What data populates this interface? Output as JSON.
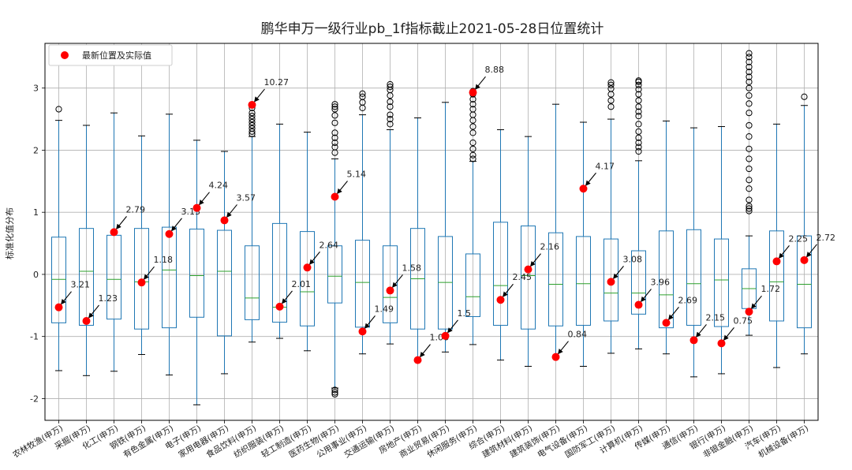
{
  "chart_data": {
    "type": "box",
    "title": "鹏华申万一级行业pb_1f指标截止2021-05-28日位置统计",
    "ylabel": "标准化值分布",
    "xlabel": "",
    "ylim": [
      -2.35,
      3.72
    ],
    "yticks": [
      -2,
      -1,
      0,
      1,
      2,
      3
    ],
    "grid": true,
    "legend": {
      "label": "最新位置及实际值",
      "position": "top-left"
    },
    "colors": {
      "box": "#1f77b4",
      "median": "#2ca02c",
      "point": "#ff0000",
      "outlier": "#000000",
      "grid": "#b0b0b0"
    },
    "categories": [
      "农林牧渔(申万)",
      "采掘(申万)",
      "化工(申万)",
      "钢铁(申万)",
      "有色金属(申万)",
      "电子(申万)",
      "家用电器(申万)",
      "食品饮料(申万)",
      "纺织服装(申万)",
      "轻工制造(申万)",
      "医药生物(申万)",
      "公用事业(申万)",
      "交通运输(申万)",
      "房地产(申万)",
      "商业贸易(申万)",
      "休闲服务(申万)",
      "综合(申万)",
      "建筑材料(申万)",
      "建筑装饰(申万)",
      "电气设备(申万)",
      "国防军工(申万)",
      "计算机(申万)",
      "传媒(申万)",
      "通信(申万)",
      "银行(申万)",
      "非银金融(申万)",
      "汽车(申万)",
      "机械设备(申万)"
    ],
    "boxes": [
      {
        "whislo": -1.55,
        "q1": -0.78,
        "med": -0.08,
        "q3": 0.6,
        "whishi": 2.48,
        "fliers": [
          2.66
        ]
      },
      {
        "whislo": -1.63,
        "q1": -0.82,
        "med": 0.05,
        "q3": 0.74,
        "whishi": 2.4,
        "fliers": []
      },
      {
        "whislo": -1.56,
        "q1": -0.72,
        "med": -0.08,
        "q3": 0.63,
        "whishi": 2.6,
        "fliers": []
      },
      {
        "whislo": -1.29,
        "q1": -0.88,
        "med": -0.12,
        "q3": 0.74,
        "whishi": 2.23,
        "fliers": []
      },
      {
        "whislo": -1.62,
        "q1": -0.86,
        "med": 0.07,
        "q3": 0.76,
        "whishi": 2.58,
        "fliers": []
      },
      {
        "whislo": -2.1,
        "q1": -0.69,
        "med": -0.02,
        "q3": 0.73,
        "whishi": 2.16,
        "fliers": []
      },
      {
        "whislo": -1.6,
        "q1": -0.99,
        "med": 0.05,
        "q3": 0.71,
        "whishi": 1.98,
        "fliers": []
      },
      {
        "whislo": -1.09,
        "q1": -0.73,
        "med": -0.38,
        "q3": 0.46,
        "whishi": 2.22,
        "fliers": [
          2.26,
          2.3,
          2.35,
          2.4,
          2.45,
          2.5,
          2.55,
          2.6,
          2.68,
          2.73
        ]
      },
      {
        "whislo": -1.03,
        "q1": -0.77,
        "med": -0.53,
        "q3": 0.82,
        "whishi": 2.42,
        "fliers": []
      },
      {
        "whislo": -1.23,
        "q1": -0.83,
        "med": -0.28,
        "q3": 0.69,
        "whishi": 2.29,
        "fliers": []
      },
      {
        "whislo": -1.83,
        "q1": -0.46,
        "med": -0.03,
        "q3": 0.46,
        "whishi": 1.86,
        "fliers": [
          1.96,
          2.05,
          2.12,
          2.2,
          2.28,
          2.44,
          2.56,
          2.66,
          2.7,
          2.74,
          -1.86,
          -1.9,
          -1.93
        ]
      },
      {
        "whislo": -1.28,
        "q1": -0.85,
        "med": -0.13,
        "q3": 0.55,
        "whishi": 2.57,
        "fliers": [
          2.68,
          2.77,
          2.86,
          2.91
        ]
      },
      {
        "whislo": -1.12,
        "q1": -0.78,
        "med": -0.37,
        "q3": 0.46,
        "whishi": 2.33,
        "fliers": [
          2.42,
          2.5,
          2.57,
          2.7,
          2.78,
          2.88,
          2.97,
          3.02,
          3.06
        ]
      },
      {
        "whislo": -1.4,
        "q1": -0.88,
        "med": -0.07,
        "q3": 0.74,
        "whishi": 2.52,
        "fliers": []
      },
      {
        "whislo": -1.25,
        "q1": -0.88,
        "med": -0.13,
        "q3": 0.61,
        "whishi": 2.77,
        "fliers": []
      },
      {
        "whislo": -1.13,
        "q1": -0.68,
        "med": -0.36,
        "q3": 0.33,
        "whishi": 1.82,
        "fliers": [
          1.86,
          1.92,
          2.02,
          2.12,
          2.28,
          2.38,
          2.48,
          2.57,
          2.66,
          2.74,
          2.82,
          2.9,
          2.95
        ]
      },
      {
        "whislo": -1.38,
        "q1": -0.82,
        "med": -0.18,
        "q3": 0.84,
        "whishi": 2.33,
        "fliers": []
      },
      {
        "whislo": -1.48,
        "q1": -0.88,
        "med": -0.02,
        "q3": 0.78,
        "whishi": 2.22,
        "fliers": []
      },
      {
        "whislo": -1.33,
        "q1": -0.83,
        "med": -0.16,
        "q3": 0.67,
        "whishi": 2.74,
        "fliers": []
      },
      {
        "whislo": -1.48,
        "q1": -0.82,
        "med": -0.15,
        "q3": 0.61,
        "whishi": 2.45,
        "fliers": []
      },
      {
        "whislo": -1.27,
        "q1": -0.75,
        "med": -0.3,
        "q3": 0.57,
        "whishi": 2.5,
        "fliers": [
          2.7,
          2.8,
          2.9,
          2.99,
          3.05,
          3.09
        ]
      },
      {
        "whislo": -1.2,
        "q1": -0.64,
        "med": -0.3,
        "q3": 0.38,
        "whishi": 1.83,
        "fliers": [
          1.98,
          2.05,
          2.12,
          2.2,
          2.3,
          2.42,
          2.55,
          2.62,
          2.7,
          2.8,
          2.9,
          2.98,
          3.05,
          3.1,
          3.12
        ]
      },
      {
        "whislo": -1.28,
        "q1": -0.86,
        "med": -0.33,
        "q3": 0.7,
        "whishi": 2.47,
        "fliers": []
      },
      {
        "whislo": -1.65,
        "q1": -0.82,
        "med": -0.15,
        "q3": 0.72,
        "whishi": 2.36,
        "fliers": []
      },
      {
        "whislo": -1.6,
        "q1": -0.84,
        "med": -0.09,
        "q3": 0.57,
        "whishi": 2.38,
        "fliers": []
      },
      {
        "whislo": -0.98,
        "q1": -0.55,
        "med": -0.23,
        "q3": 0.09,
        "whishi": 0.62,
        "fliers": [
          1.02,
          1.06,
          1.1,
          1.2,
          1.38,
          1.52,
          1.7,
          1.86,
          2.02,
          2.22,
          2.4,
          2.6,
          2.75,
          2.88,
          3.0,
          3.1,
          3.18,
          3.26,
          3.34,
          3.42,
          3.5,
          3.56
        ]
      },
      {
        "whislo": -1.5,
        "q1": -0.75,
        "med": -0.12,
        "q3": 0.7,
        "whishi": 2.42,
        "fliers": []
      },
      {
        "whislo": -1.28,
        "q1": -0.86,
        "med": -0.16,
        "q3": 0.62,
        "whishi": 2.72,
        "fliers": [
          2.86
        ]
      }
    ],
    "latest": [
      {
        "y": -0.53,
        "label": "3.21"
      },
      {
        "y": -0.75,
        "label": "1.23"
      },
      {
        "y": 0.68,
        "label": "2.79"
      },
      {
        "y": -0.13,
        "label": "1.18"
      },
      {
        "y": 0.65,
        "label": "3.13"
      },
      {
        "y": 1.07,
        "label": "4.24"
      },
      {
        "y": 0.87,
        "label": "3.57"
      },
      {
        "y": 2.73,
        "label": "10.27"
      },
      {
        "y": -0.52,
        "label": "2.01"
      },
      {
        "y": 0.11,
        "label": "2.64"
      },
      {
        "y": 1.25,
        "label": "5.14"
      },
      {
        "y": -0.92,
        "label": "1.49"
      },
      {
        "y": -0.26,
        "label": "1.58"
      },
      {
        "y": -1.38,
        "label": "1.06"
      },
      {
        "y": -0.99,
        "label": "1.5"
      },
      {
        "y": 2.93,
        "label": "8.88"
      },
      {
        "y": -0.41,
        "label": "2.45"
      },
      {
        "y": 0.08,
        "label": "2.16"
      },
      {
        "y": -1.33,
        "label": "0.84"
      },
      {
        "y": 1.38,
        "label": "4.17"
      },
      {
        "y": -0.12,
        "label": "3.08"
      },
      {
        "y": -0.49,
        "label": "3.96"
      },
      {
        "y": -0.78,
        "label": "2.69"
      },
      {
        "y": -1.06,
        "label": "2.15"
      },
      {
        "y": -1.11,
        "label": "0.75"
      },
      {
        "y": -0.6,
        "label": "1.72"
      },
      {
        "y": 0.21,
        "label": "2.25"
      },
      {
        "y": 0.23,
        "label": "2.72"
      }
    ]
  }
}
